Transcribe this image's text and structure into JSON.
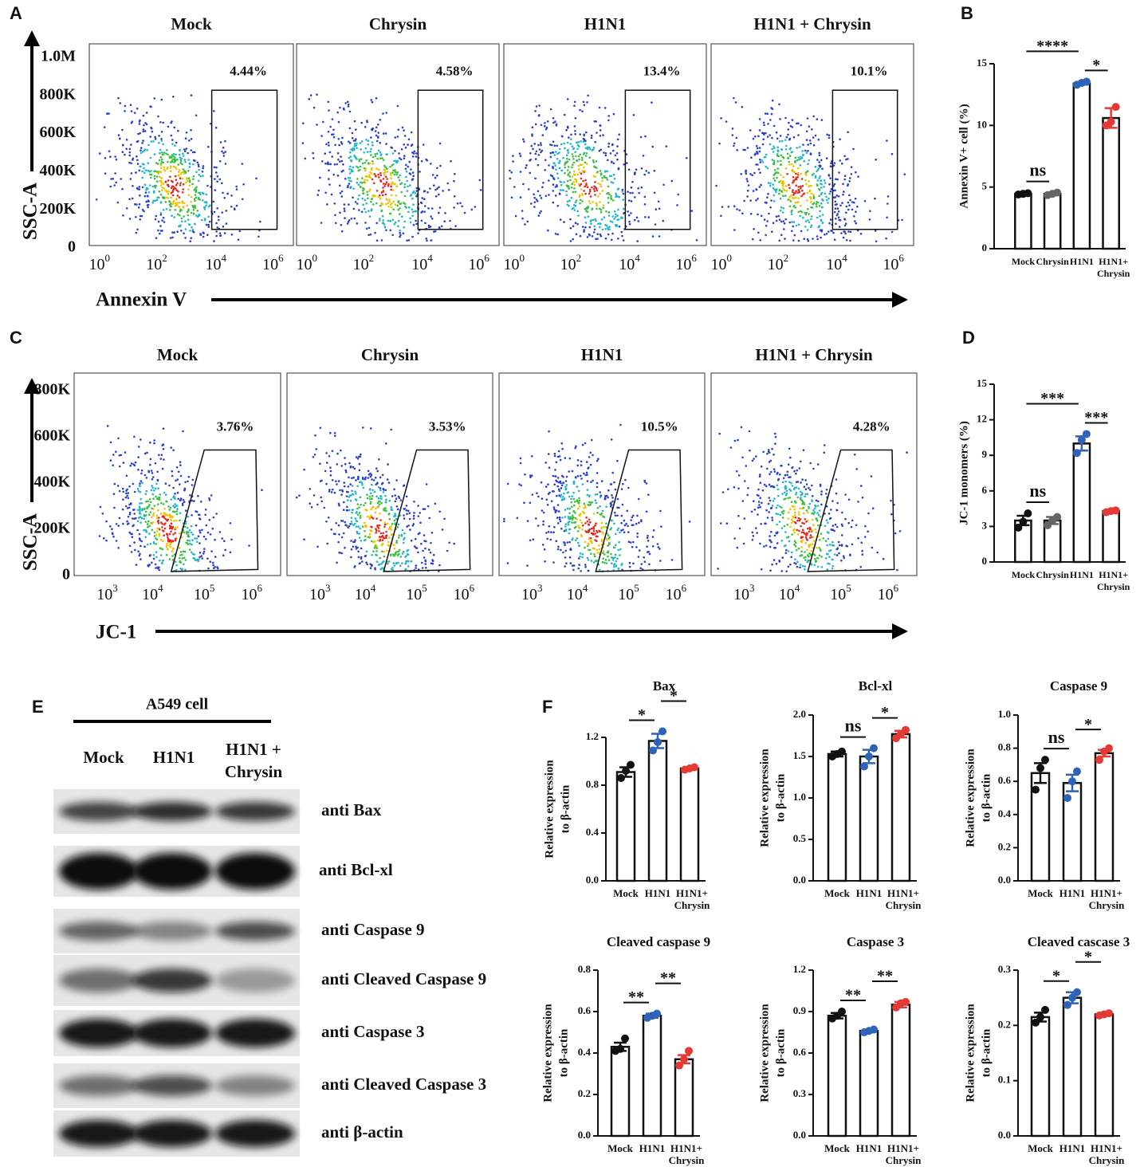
{
  "panel_labels": [
    "A",
    "B",
    "C",
    "D",
    "E",
    "F"
  ],
  "flow": [
    {
      "x_label": "Annexin V",
      "y_label": "SSC-A",
      "yticks": [
        "1.0M",
        "800K",
        "600K",
        "400K",
        "200K",
        "0"
      ],
      "xtick_base": "10",
      "xtick_exponents": [
        0,
        2,
        4,
        6
      ],
      "samples": [
        "Mock",
        "Chrysin",
        "H1N1",
        "H1N1 + Chrysin"
      ],
      "gate_percentages": [
        "4.44%",
        "4.58%",
        "13.4%",
        "10.1%"
      ]
    },
    {
      "x_label": "JC-1",
      "y_label": "SSC-A",
      "yticks": [
        "800K",
        "600K",
        "400K",
        "200K",
        "0"
      ],
      "xtick_base": "10",
      "xtick_exponents": [
        3,
        4,
        5,
        6
      ],
      "samples": [
        "Mock",
        "Chrysin",
        "H1N1",
        "H1N1 + Chrysin"
      ],
      "gate_percentages": [
        "3.76%",
        "3.53%",
        "10.5%",
        "4.28%"
      ]
    }
  ],
  "western_blot": {
    "title": "A549 cell",
    "lanes": [
      "Mock",
      "H1N1",
      [
        "H1N1 +",
        "Chrysin"
      ]
    ],
    "antibodies": [
      "anti Bax",
      "anti Bcl-xl",
      "anti Caspase 9",
      "anti Cleaved Caspase 9",
      "anti Caspase 3",
      "anti Cleaved Caspase 3",
      "anti β-actin"
    ]
  },
  "chart_data": [
    {
      "type": "bar",
      "ylabel": "Annexin V+ cell (%)",
      "categories": [
        "Mock",
        "Chrysin",
        "H1N1",
        [
          "H1N1+",
          "Chrysin"
        ]
      ],
      "values": [
        4.44,
        4.45,
        13.4,
        10.6
      ],
      "errors": [
        0.05,
        0.1,
        0.1,
        0.8
      ],
      "points": [
        [
          4.4,
          4.45,
          4.5
        ],
        [
          4.35,
          4.45,
          4.55
        ],
        [
          13.3,
          13.45,
          13.55
        ],
        [
          10.0,
          10.3,
          11.5
        ]
      ],
      "colors": [
        "#111111",
        "#666666",
        "#2e63b8",
        "#e53935"
      ],
      "ylim": [
        0,
        15
      ],
      "yticks": [
        0,
        5,
        10,
        15
      ],
      "significance": [
        {
          "label": "ns",
          "from": 0,
          "to": 1
        },
        {
          "label": "*",
          "from": 2,
          "to": 3
        },
        {
          "label": "****",
          "from": 0,
          "to": 2
        }
      ]
    },
    {
      "type": "bar",
      "ylabel": "JC-1 monomers (%)",
      "categories": [
        "Mock",
        "Chrysin",
        "H1N1",
        [
          "H1N1+",
          "Chrysin"
        ]
      ],
      "values": [
        3.5,
        3.5,
        10.0,
        4.3
      ],
      "errors": [
        0.4,
        0.3,
        0.6,
        0.05
      ],
      "points": [
        [
          2.9,
          3.4,
          4.1
        ],
        [
          3.1,
          3.5,
          3.8
        ],
        [
          9.2,
          10.3,
          10.8
        ],
        [
          4.2,
          4.3,
          4.35
        ]
      ],
      "colors": [
        "#111111",
        "#666666",
        "#2e63b8",
        "#e53935"
      ],
      "ylim": [
        0,
        15
      ],
      "yticks": [
        0,
        3,
        6,
        9,
        12,
        15
      ],
      "significance": [
        {
          "label": "ns",
          "from": 0,
          "to": 1
        },
        {
          "label": "***",
          "from": 2,
          "to": 3
        },
        {
          "label": "***",
          "from": 0,
          "to": 2
        }
      ]
    },
    {
      "type": "bar",
      "title": "Bax",
      "ylabel": [
        "Relative expression",
        "to β-actin"
      ],
      "categories": [
        "Mock",
        "H1N1",
        [
          "H1N1+",
          "Chrysin"
        ]
      ],
      "values": [
        0.91,
        1.17,
        0.94
      ],
      "errors": [
        0.04,
        0.06,
        0.01
      ],
      "points": [
        [
          0.86,
          0.92,
          0.97
        ],
        [
          1.09,
          1.16,
          1.25
        ],
        [
          0.93,
          0.94,
          0.95
        ]
      ],
      "colors": [
        "#111111",
        "#2e63b8",
        "#e53935"
      ],
      "ylim": [
        0,
        1.2
      ],
      "yticks": [
        {
          "value": 0,
          "label": "0.0"
        },
        {
          "value": 0.4,
          "label": "0.4"
        },
        {
          "value": 0.8,
          "label": "0.8"
        },
        {
          "value": 1.2,
          "label": "1.2"
        }
      ],
      "significance": [
        {
          "label": "*",
          "from": 0,
          "to": 1
        },
        {
          "label": "*",
          "from": 1,
          "to": 2
        }
      ]
    },
    {
      "type": "bar",
      "title": "Bcl-xl",
      "ylabel": [
        "Relative expression",
        "to β-actin"
      ],
      "categories": [
        "Mock",
        "H1N1",
        [
          "H1N1+",
          "Chrysin"
        ]
      ],
      "values": [
        1.53,
        1.5,
        1.77
      ],
      "errors": [
        0.03,
        0.08,
        0.04
      ],
      "points": [
        [
          1.5,
          1.53,
          1.56
        ],
        [
          1.38,
          1.5,
          1.6
        ],
        [
          1.72,
          1.77,
          1.82
        ]
      ],
      "colors": [
        "#111111",
        "#2e63b8",
        "#e53935"
      ],
      "ylim": [
        0,
        2
      ],
      "yticks": [
        {
          "value": 0,
          "label": "0.0"
        },
        {
          "value": 0.5,
          "label": "0.5"
        },
        {
          "value": 1,
          "label": "1.0"
        },
        {
          "value": 1.5,
          "label": "1.5"
        },
        {
          "value": 2,
          "label": "2.0"
        }
      ],
      "significance": [
        {
          "label": "ns",
          "from": 0,
          "to": 1
        },
        {
          "label": "*",
          "from": 1,
          "to": 2
        }
      ]
    },
    {
      "type": "bar",
      "title": "Caspase 9",
      "ylabel": [
        "Relative expression",
        "to β-actin"
      ],
      "categories": [
        "Mock",
        "H1N1",
        [
          "H1N1+",
          "Chrysin"
        ]
      ],
      "values": [
        0.65,
        0.59,
        0.77
      ],
      "errors": [
        0.06,
        0.05,
        0.02
      ],
      "points": [
        [
          0.55,
          0.68,
          0.73
        ],
        [
          0.5,
          0.6,
          0.66
        ],
        [
          0.73,
          0.78,
          0.8
        ]
      ],
      "colors": [
        "#111111",
        "#2e63b8",
        "#e53935"
      ],
      "ylim": [
        0,
        1
      ],
      "yticks": [
        {
          "value": 0,
          "label": "0.0"
        },
        {
          "value": 0.2,
          "label": "0.2"
        },
        {
          "value": 0.4,
          "label": "0.4"
        },
        {
          "value": 0.6,
          "label": "0.6"
        },
        {
          "value": 0.8,
          "label": "0.8"
        },
        {
          "value": 1,
          "label": "1.0"
        }
      ],
      "significance": [
        {
          "label": "ns",
          "from": 0,
          "to": 1
        },
        {
          "label": "*",
          "from": 1,
          "to": 2
        }
      ]
    },
    {
      "type": "bar",
      "title": "Cleaved caspase 9",
      "ylabel": [
        "Relative expression",
        "to β-actin"
      ],
      "categories": [
        "Mock",
        "H1N1",
        [
          "H1N1+",
          "Chrysin"
        ]
      ],
      "values": [
        0.43,
        0.58,
        0.37
      ],
      "errors": [
        0.02,
        0.01,
        0.02
      ],
      "points": [
        [
          0.41,
          0.42,
          0.47
        ],
        [
          0.57,
          0.58,
          0.59
        ],
        [
          0.34,
          0.37,
          0.41
        ]
      ],
      "colors": [
        "#111111",
        "#2e63b8",
        "#e53935"
      ],
      "ylim": [
        0,
        0.8
      ],
      "yticks": [
        {
          "value": 0,
          "label": "0.0"
        },
        {
          "value": 0.2,
          "label": "0.2"
        },
        {
          "value": 0.4,
          "label": "0.4"
        },
        {
          "value": 0.6,
          "label": "0.6"
        },
        {
          "value": 0.8,
          "label": "0.8"
        }
      ],
      "significance": [
        {
          "label": "**",
          "from": 0,
          "to": 1
        },
        {
          "label": "**",
          "from": 1,
          "to": 2
        }
      ]
    },
    {
      "type": "bar",
      "title": "Caspase 3",
      "ylabel": [
        "Relative expression",
        "to β-actin"
      ],
      "categories": [
        "Mock",
        "H1N1",
        [
          "H1N1+",
          "Chrysin"
        ]
      ],
      "values": [
        0.87,
        0.76,
        0.95
      ],
      "errors": [
        0.02,
        0.01,
        0.02
      ],
      "points": [
        [
          0.85,
          0.87,
          0.9
        ],
        [
          0.75,
          0.76,
          0.77
        ],
        [
          0.93,
          0.96,
          0.97
        ]
      ],
      "colors": [
        "#111111",
        "#2e63b8",
        "#e53935"
      ],
      "ylim": [
        0,
        1.2
      ],
      "yticks": [
        {
          "value": 0,
          "label": "0.0"
        },
        {
          "value": 0.3,
          "label": "0.3"
        },
        {
          "value": 0.6,
          "label": "0.6"
        },
        {
          "value": 0.9,
          "label": "0.9"
        },
        {
          "value": 1.2,
          "label": "1.2"
        }
      ],
      "significance": [
        {
          "label": "**",
          "from": 0,
          "to": 1
        },
        {
          "label": "**",
          "from": 1,
          "to": 2
        }
      ]
    },
    {
      "type": "bar",
      "title": "Cleaved cascase 3",
      "ylabel": [
        "Relative expression",
        "to β-actin"
      ],
      "categories": [
        "Mock",
        "H1N1",
        [
          "H1N1+",
          "Chrysin"
        ]
      ],
      "values": [
        0.215,
        0.25,
        0.22
      ],
      "errors": [
        0.008,
        0.01,
        0.002
      ],
      "points": [
        [
          0.205,
          0.215,
          0.228
        ],
        [
          0.237,
          0.25,
          0.26
        ],
        [
          0.218,
          0.22,
          0.222
        ]
      ],
      "colors": [
        "#111111",
        "#2e63b8",
        "#e53935"
      ],
      "ylim": [
        0,
        0.3
      ],
      "yticks": [
        {
          "value": 0,
          "label": "0.0"
        },
        {
          "value": 0.1,
          "label": "0.1"
        },
        {
          "value": 0.2,
          "label": "0.2"
        },
        {
          "value": 0.3,
          "label": "0.3"
        }
      ],
      "significance": [
        {
          "label": "*",
          "from": 0,
          "to": 1
        },
        {
          "label": "*",
          "from": 1,
          "to": 2
        }
      ]
    }
  ]
}
